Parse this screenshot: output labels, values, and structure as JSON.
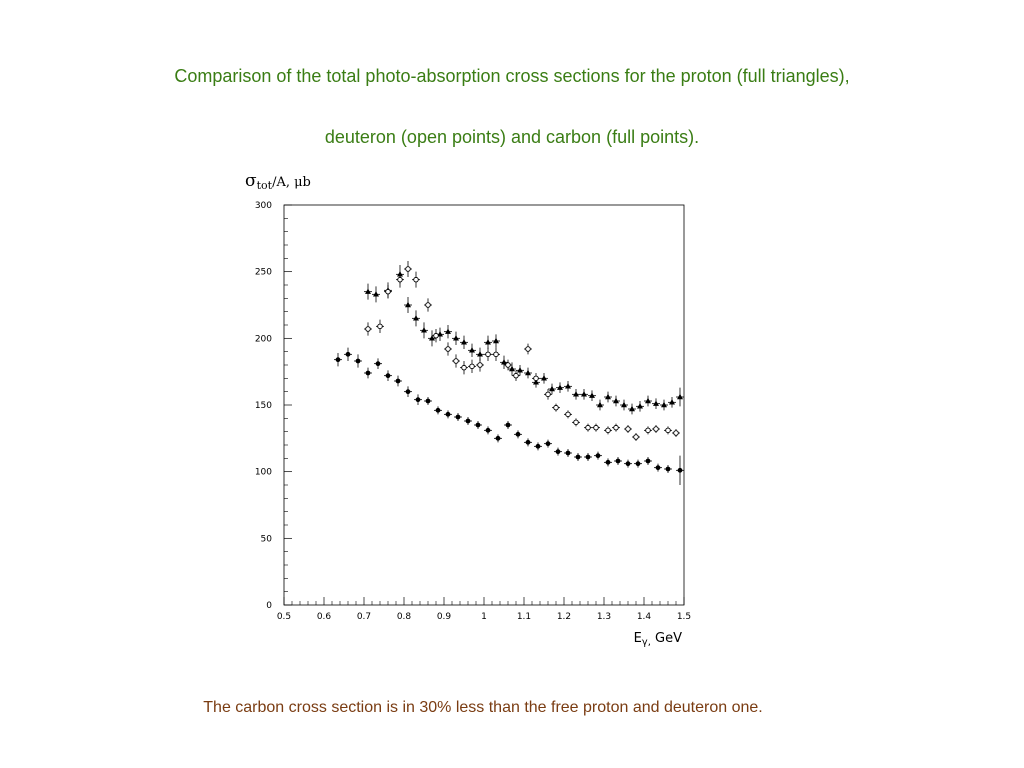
{
  "slide": {
    "title_line1": "Comparison of the total photo-absorption cross sections for the proton (full triangles),",
    "title_line2": "deuteron (open points)  and carbon (full points).",
    "caption": "The carbon cross section is in 30% less than the free proton and deuteron one.",
    "title_color": "#3a7d14",
    "caption_color": "#7a3c12"
  },
  "chart_data": {
    "type": "scatter",
    "ylabel": "σtot/A, μb",
    "xlabel": "Eγ, GeV",
    "xlim": [
      0.5,
      1.5
    ],
    "ylim": [
      0,
      300
    ],
    "xticks": [
      "0.5",
      "0.6",
      "0.7",
      "0.8",
      "0.9",
      "1",
      "1.1",
      "1.2",
      "1.3",
      "1.4",
      "1.5"
    ],
    "yticks": [
      "0",
      "50",
      "100",
      "150",
      "200",
      "250",
      "300"
    ],
    "grid": false,
    "legend": "none",
    "series": [
      {
        "marker": "full-triangle",
        "x": [
          0.71,
          0.73,
          0.76,
          0.79,
          0.81,
          0.83,
          0.85,
          0.87,
          0.89,
          0.91,
          0.93,
          0.95,
          0.97,
          0.99,
          1.01,
          1.03,
          1.05,
          1.07,
          1.09,
          1.11,
          1.13,
          1.15,
          1.17,
          1.19,
          1.21,
          1.23,
          1.25,
          1.27,
          1.29,
          1.31,
          1.33,
          1.35,
          1.37,
          1.39,
          1.41,
          1.43,
          1.45,
          1.47,
          1.49
        ],
        "y": [
          235,
          233,
          236,
          248,
          225,
          215,
          206,
          200,
          203,
          205,
          200,
          197,
          191,
          188,
          197,
          198,
          182,
          177,
          176,
          174,
          167,
          170,
          162,
          163,
          164,
          158,
          158,
          157,
          150,
          156,
          153,
          150,
          147,
          149,
          153,
          151,
          150,
          152,
          156
        ],
        "err": [
          6,
          6,
          6,
          7,
          6,
          6,
          6,
          6,
          5,
          5,
          5,
          5,
          5,
          5,
          5,
          5,
          5,
          5,
          4,
          4,
          4,
          4,
          4,
          4,
          4,
          4,
          4,
          4,
          4,
          4,
          4,
          4,
          4,
          4,
          4,
          4,
          4,
          4,
          7
        ]
      },
      {
        "marker": "open-circle",
        "x": [
          0.71,
          0.74,
          0.76,
          0.79,
          0.81,
          0.83,
          0.86,
          0.88,
          0.91,
          0.93,
          0.95,
          0.97,
          0.99,
          1.01,
          1.03,
          1.06,
          1.08,
          1.11,
          1.13,
          1.16,
          1.18,
          1.21,
          1.23,
          1.26,
          1.28,
          1.31,
          1.33,
          1.36,
          1.38,
          1.41,
          1.43,
          1.46,
          1.48
        ],
        "y": [
          207,
          209,
          235,
          244,
          252,
          244,
          225,
          202,
          192,
          183,
          178,
          179,
          180,
          188,
          188,
          180,
          172,
          192,
          170,
          158,
          148,
          143,
          137,
          133,
          133,
          131,
          133,
          132,
          126,
          131,
          132,
          131,
          129
        ],
        "err": [
          5,
          5,
          5,
          6,
          6,
          6,
          5,
          5,
          5,
          5,
          5,
          5,
          5,
          5,
          5,
          4,
          4,
          4,
          4,
          4,
          3,
          3,
          3,
          3,
          3,
          3,
          3,
          3,
          3,
          3,
          3,
          3,
          3
        ]
      },
      {
        "marker": "full-circle",
        "x": [
          0.635,
          0.66,
          0.685,
          0.71,
          0.735,
          0.76,
          0.785,
          0.81,
          0.835,
          0.86,
          0.885,
          0.91,
          0.935,
          0.96,
          0.985,
          1.01,
          1.035,
          1.06,
          1.085,
          1.11,
          1.135,
          1.16,
          1.185,
          1.21,
          1.235,
          1.26,
          1.285,
          1.31,
          1.335,
          1.36,
          1.385,
          1.41,
          1.435,
          1.46,
          1.49
        ],
        "y": [
          184,
          188,
          183,
          174,
          181,
          172,
          168,
          160,
          154,
          153,
          146,
          143,
          141,
          138,
          135,
          131,
          125,
          135,
          128,
          122,
          119,
          121,
          115,
          114,
          111,
          111,
          112,
          107,
          108,
          106,
          106,
          108,
          103,
          102,
          101
        ],
        "err": [
          5,
          5,
          5,
          4,
          4,
          4,
          4,
          4,
          4,
          3,
          3,
          3,
          3,
          3,
          3,
          3,
          3,
          3,
          3,
          3,
          3,
          3,
          3,
          3,
          3,
          3,
          3,
          3,
          3,
          3,
          3,
          3,
          3,
          3,
          11
        ]
      }
    ]
  }
}
